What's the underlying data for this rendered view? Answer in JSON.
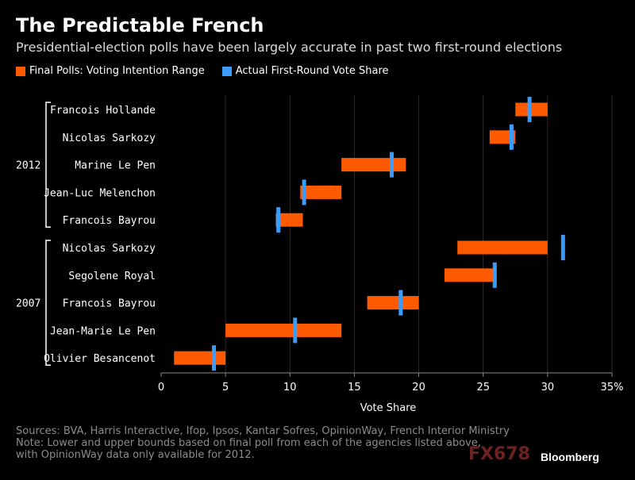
{
  "header": {
    "title": "The Predictable French",
    "subtitle": "Presidential-election polls have been largely accurate in past two first-round elections"
  },
  "legend": {
    "polls_label": "Final Polls: Voting Intention Range",
    "actual_label": "Actual First-Round Vote Share"
  },
  "colors": {
    "poll_range": "#ff5a00",
    "actual_share": "#3b9cff",
    "grid": "#2b2b2b",
    "axis": "#888888",
    "text": "#ffffff"
  },
  "chart_data": {
    "type": "bar",
    "orientation": "horizontal",
    "xlabel": "Vote Share",
    "xlim": [
      0,
      35
    ],
    "xticks": [
      0,
      5,
      10,
      15,
      20,
      25,
      30,
      35
    ],
    "xtick_labels": [
      "0",
      "5",
      "10",
      "15",
      "20",
      "25",
      "30",
      "35%"
    ],
    "grid": true,
    "legend_position": "top-left",
    "groups": [
      {
        "year": "2012",
        "candidates": [
          {
            "name": "Francois Hollande",
            "poll_low": 27.5,
            "poll_high": 30,
            "actual": 28.6
          },
          {
            "name": "Nicolas Sarkozy",
            "poll_low": 25.5,
            "poll_high": 27.5,
            "actual": 27.2
          },
          {
            "name": "Marine Le Pen",
            "poll_low": 14,
            "poll_high": 19,
            "actual": 17.9
          },
          {
            "name": "Jean-Luc Melenchon",
            "poll_low": 10.8,
            "poll_high": 14,
            "actual": 11.1
          },
          {
            "name": "Francois Bayrou",
            "poll_low": 8.9,
            "poll_high": 11,
            "actual": 9.1
          }
        ]
      },
      {
        "year": "2007",
        "candidates": [
          {
            "name": "Nicolas Sarkozy",
            "poll_low": 23,
            "poll_high": 30,
            "actual": 31.2
          },
          {
            "name": "Segolene Royal",
            "poll_low": 22,
            "poll_high": 25.9,
            "actual": 25.9
          },
          {
            "name": "Francois Bayrou",
            "poll_low": 16,
            "poll_high": 20,
            "actual": 18.6
          },
          {
            "name": "Jean-Marie Le Pen",
            "poll_low": 5,
            "poll_high": 14,
            "actual": 10.4
          },
          {
            "name": "Olivier Besancenot",
            "poll_low": 1,
            "poll_high": 5,
            "actual": 4.1
          }
        ]
      }
    ]
  },
  "footer": {
    "sources": "Sources: BVA, Harris Interactive, Ifop, Ipsos, Kantar Sofres, OpinionWay, French Interior Ministry",
    "note_line1": "Note: Lower and upper bounds based on final poll from each of the agencies listed above,",
    "note_line2": "with OpinionWay data only available for 2012."
  },
  "watermark": "FX678",
  "brand": "Bloomberg"
}
